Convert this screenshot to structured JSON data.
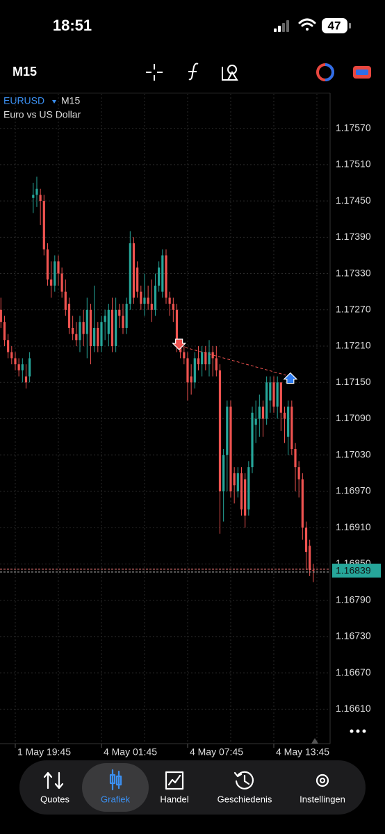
{
  "status_bar": {
    "time": "18:51",
    "battery": "47"
  },
  "toolbar": {
    "timeframe": "M15"
  },
  "chart_data": {
    "type": "candlestick",
    "symbol": "EURUSD",
    "timeframe": "M15",
    "subtitle": "Euro vs US Dollar",
    "up_color": "#26a69a",
    "down_color": "#ef5350",
    "grid": true,
    "categories": [
      null,
      null,
      null,
      null,
      "1 May 19:45",
      null,
      null,
      null,
      null,
      null,
      null,
      null,
      null,
      null,
      null,
      null,
      null,
      null,
      null,
      null,
      null,
      null,
      null,
      null,
      null,
      null,
      null,
      null,
      "4 May 01:45",
      null,
      null,
      null,
      null,
      null,
      null,
      null,
      null,
      null,
      null,
      null,
      null,
      null,
      null,
      null,
      null,
      null,
      null,
      null,
      null,
      null,
      null,
      null,
      "4 May 07:45",
      null,
      null,
      null,
      null,
      null,
      null,
      null,
      null,
      null,
      null,
      null,
      null,
      null,
      null,
      null,
      null,
      null,
      null,
      null,
      null,
      null,
      null,
      null,
      "4 May 13:45",
      null,
      null,
      null,
      null,
      null,
      null,
      null,
      null,
      null,
      null,
      null
    ],
    "open": [
      1.1727,
      1.1725,
      1.1722,
      1.172,
      1.1719,
      1.1718,
      1.1717,
      1.1716,
      1.1716,
      1.17455,
      1.1746,
      1.1746,
      1.1745,
      1.1737,
      1.1732,
      1.1731,
      1.1735,
      1.1733,
      1.173,
      1.1728,
      1.1724,
      1.1723,
      1.1722,
      1.1725,
      1.1723,
      1.1727,
      1.1721,
      1.1724,
      1.1721,
      1.1725,
      1.1723,
      1.1727,
      1.1721,
      1.1727,
      1.1726,
      1.1724,
      1.1728,
      1.1738,
      1.1734,
      1.173,
      1.1728,
      1.1729,
      1.1728,
      1.1727,
      1.1731,
      1.173,
      1.1736,
      1.1729,
      1.1728,
      1.1727,
      1.1721,
      1.172,
      1.1719,
      1.1716,
      1.1715,
      1.1719,
      1.1718,
      1.172,
      1.1718,
      1.172,
      1.1719,
      1.1717,
      1.1697,
      1.1703,
      1.1711,
      1.17,
      1.1697,
      1.17,
      1.1699,
      1.1694,
      1.1701,
      1.1708,
      1.1709,
      1.1711,
      1.1709,
      1.1712,
      1.1715,
      1.1711,
      1.1715,
      1.171,
      1.1706,
      1.1711,
      1.1704,
      1.1701,
      1.1699,
      1.1691,
      1.1688,
      1.1684
    ],
    "high": [
      1.1729,
      1.1726,
      1.1723,
      1.1721,
      1.172,
      1.1719,
      1.1719,
      1.1718,
      1.172,
      1.1748,
      1.1749,
      1.1747,
      1.1746,
      1.1738,
      1.1735,
      1.1736,
      1.1736,
      1.1734,
      1.1732,
      1.1729,
      1.1726,
      1.1725,
      1.1726,
      1.1727,
      1.1729,
      1.1728,
      1.1731,
      1.1725,
      1.1726,
      1.1727,
      1.1728,
      1.1729,
      1.1729,
      1.1728,
      1.1728,
      1.1729,
      1.174,
      1.1739,
      1.1735,
      1.1731,
      1.1733,
      1.1731,
      1.1732,
      1.1733,
      1.1735,
      1.1737,
      1.1737,
      1.173,
      1.1729,
      1.1728,
      1.1722,
      1.1721,
      1.172,
      1.1718,
      1.172,
      1.1721,
      1.1721,
      1.1721,
      1.1722,
      1.1721,
      1.1721,
      1.1718,
      1.1704,
      1.1712,
      1.1712,
      1.1701,
      1.1701,
      1.1701,
      1.17,
      1.1702,
      1.1711,
      1.1712,
      1.1713,
      1.1712,
      1.1716,
      1.1716,
      1.1716,
      1.1716,
      1.1715,
      1.1711,
      1.1712,
      1.1712,
      1.1705,
      1.1702,
      1.17,
      1.1692,
      1.1689,
      1.1685
    ],
    "low": [
      1.1724,
      1.1721,
      1.1719,
      1.1718,
      1.1717,
      1.1716,
      1.1715,
      1.1714,
      1.1715,
      1.1743,
      1.1744,
      1.1741,
      1.1736,
      1.1731,
      1.1729,
      1.173,
      1.1731,
      1.1729,
      1.1726,
      1.1723,
      1.1722,
      1.1721,
      1.172,
      1.1721,
      1.1719,
      1.1718,
      1.172,
      1.172,
      1.172,
      1.1722,
      1.1721,
      1.172,
      1.172,
      1.1724,
      1.1723,
      1.1723,
      1.1727,
      1.1728,
      1.1729,
      1.1727,
      1.1726,
      1.1727,
      1.1725,
      1.1726,
      1.173,
      1.1729,
      1.1728,
      1.1726,
      1.1725,
      1.172,
      1.1719,
      1.1718,
      1.1712,
      1.1713,
      1.1714,
      1.1717,
      1.1716,
      1.1717,
      1.1716,
      1.1716,
      1.1716,
      1.169,
      1.1692,
      1.1697,
      1.1696,
      1.1695,
      1.1696,
      1.1693,
      1.1691,
      1.1693,
      1.17,
      1.1705,
      1.1706,
      1.1706,
      1.1708,
      1.171,
      1.171,
      1.1709,
      1.1707,
      1.1705,
      1.1703,
      1.1703,
      1.1697,
      1.1696,
      1.1689,
      1.1684,
      1.1683,
      1.1682
    ],
    "close": [
      1.1725,
      1.1722,
      1.172,
      1.1719,
      1.1718,
      1.1717,
      1.1718,
      1.1715,
      1.1719,
      1.1746,
      1.1747,
      1.1745,
      1.1737,
      1.1732,
      1.1731,
      1.1735,
      1.1733,
      1.173,
      1.1727,
      1.1724,
      1.1723,
      1.1722,
      1.1725,
      1.1723,
      1.1727,
      1.1721,
      1.1724,
      1.1721,
      1.1725,
      1.1726,
      1.1727,
      1.1721,
      1.1727,
      1.1726,
      1.1724,
      1.1728,
      1.1738,
      1.1729,
      1.173,
      1.1728,
      1.1729,
      1.1728,
      1.1727,
      1.1731,
      1.1734,
      1.1736,
      1.1729,
      1.1728,
      1.1727,
      1.1721,
      1.172,
      1.1719,
      1.1715,
      1.1715,
      1.1719,
      1.1718,
      1.172,
      1.1718,
      1.172,
      1.1719,
      1.1717,
      1.1697,
      1.1703,
      1.1711,
      1.1697,
      1.1698,
      1.17,
      1.1694,
      1.1693,
      1.1701,
      1.171,
      1.1709,
      1.1711,
      1.1709,
      1.1715,
      1.1715,
      1.1711,
      1.1715,
      1.171,
      1.1709,
      1.1711,
      1.1704,
      1.1701,
      1.1699,
      1.1691,
      1.1687,
      1.1684,
      1.16839
    ],
    "ylim": [
      1.16553,
      1.17627
    ],
    "yticks": [
      {
        "value": 1.1757,
        "label": "1.17570"
      },
      {
        "value": 1.1751,
        "label": "1.17510"
      },
      {
        "value": 1.1745,
        "label": "1.17450"
      },
      {
        "value": 1.1739,
        "label": "1.17390"
      },
      {
        "value": 1.1733,
        "label": "1.17330"
      },
      {
        "value": 1.1727,
        "label": "1.17270"
      },
      {
        "value": 1.1721,
        "label": "1.17210"
      },
      {
        "value": 1.1715,
        "label": "1.17150"
      },
      {
        "value": 1.1709,
        "label": "1.17090"
      },
      {
        "value": 1.1703,
        "label": "1.17030"
      },
      {
        "value": 1.1697,
        "label": "1.16970"
      },
      {
        "value": 1.1691,
        "label": "1.16910"
      },
      {
        "value": 1.1685,
        "label": "1.16850"
      },
      {
        "value": 1.1679,
        "label": "1.16790"
      },
      {
        "value": 1.1673,
        "label": "1.16730"
      },
      {
        "value": 1.1667,
        "label": "1.16670"
      },
      {
        "value": 1.1661,
        "label": "1.16610"
      }
    ],
    "current_price": {
      "value": 1.16839,
      "label": "1.16839"
    },
    "trade_arrows": [
      {
        "index": 50,
        "price": 1.1721,
        "side": "sell"
      },
      {
        "index": 81,
        "price": 1.1716,
        "side": "buy"
      }
    ]
  },
  "nav": {
    "active": 1,
    "items": [
      "Quotes",
      "Grafiek",
      "Handel",
      "Geschiedenis",
      "Instellingen"
    ]
  }
}
